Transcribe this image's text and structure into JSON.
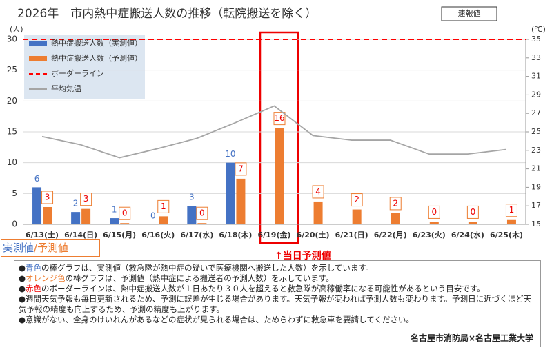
{
  "chart_data": {
    "type": "bar",
    "title": "2026年　市内熱中症搬送人数の推移（転院搬送を除く）",
    "badge": "速報値",
    "y_unit": "(人)",
    "y2_unit": "(℃)",
    "categories": [
      "6/13(土)",
      "6/14(日)",
      "6/15(月)",
      "6/16(火)",
      "6/17(水)",
      "6/18(木)",
      "6/19(金)",
      "6/20(土)",
      "6/21(日)",
      "6/22(月)",
      "6/23(火)",
      "6/24(水)",
      "6/25(木)"
    ],
    "series": [
      {
        "name": "熱中症搬送人数（実測値）",
        "type": "bar",
        "color": "#4472c4",
        "values": [
          6,
          2,
          1,
          0,
          3,
          10,
          null,
          null,
          null,
          null,
          null,
          null,
          null
        ]
      },
      {
        "name": "熱中症搬送人数（予測値）",
        "type": "bar",
        "color": "#ed7d31",
        "values": [
          2.8,
          2.5,
          0.2,
          1.3,
          0.2,
          7.4,
          15.6,
          3.7,
          2.4,
          1.8,
          0.4,
          0.4,
          0.7
        ],
        "value_labels": [
          "3",
          "3",
          "0",
          "1",
          "0",
          "7",
          "16",
          "4",
          "2",
          "2",
          "0",
          "0",
          "1"
        ]
      },
      {
        "name": "平均気温",
        "type": "line",
        "axis": "y2",
        "color": "#a5a5a5",
        "values": [
          24.5,
          23.6,
          22.2,
          23.2,
          24.3,
          26.0,
          27.8,
          24.6,
          24.1,
          24.1,
          22.6,
          22.6,
          23.1
        ]
      }
    ],
    "border_line": {
      "name": "ボーダーライン",
      "value": 30,
      "color": "#ff0000"
    },
    "ylim": [
      0,
      30
    ],
    "yticks": [
      0,
      5,
      10,
      15,
      20,
      25,
      30
    ],
    "y2lim": [
      15,
      35
    ],
    "y2ticks": [
      15,
      17,
      19,
      21,
      23,
      25,
      27,
      29,
      31,
      33,
      35
    ],
    "grid": true,
    "annotation": "↑当日予測値",
    "key_label": [
      "実測値",
      "/",
      "予測値"
    ],
    "notes": [
      [
        "●",
        "青色",
        "の棒グラフは、実測値（救急隊が熱中症の疑いで医療機関へ搬送した人数）を示しています。"
      ],
      [
        "●",
        "オレンジ色",
        "の棒グラフは、予測値（熱中症による搬送者の予測人数）を示しています。"
      ],
      [
        "●",
        "赤色",
        "のボーダーラインは、熱中症搬送人数が１日あたり３０人を超えると救急隊が高稼働率になる可能性があるという目安です。"
      ],
      [
        "●",
        "",
        "週間天気予報も毎日更新されるため、予測に誤差が生じる場合があります。天気予報が変われば予測人数も変わります。予測日に近づくほど天気予報の精度も向上するため、予測の精度も上がります。"
      ],
      [
        "●",
        "",
        "意識がない、全身のけいれんがあるなどの症状が見られる場合は、ためらわずに救急車を要請してください。"
      ]
    ],
    "footer": "名古屋市消防局×名古屋工業大学"
  }
}
